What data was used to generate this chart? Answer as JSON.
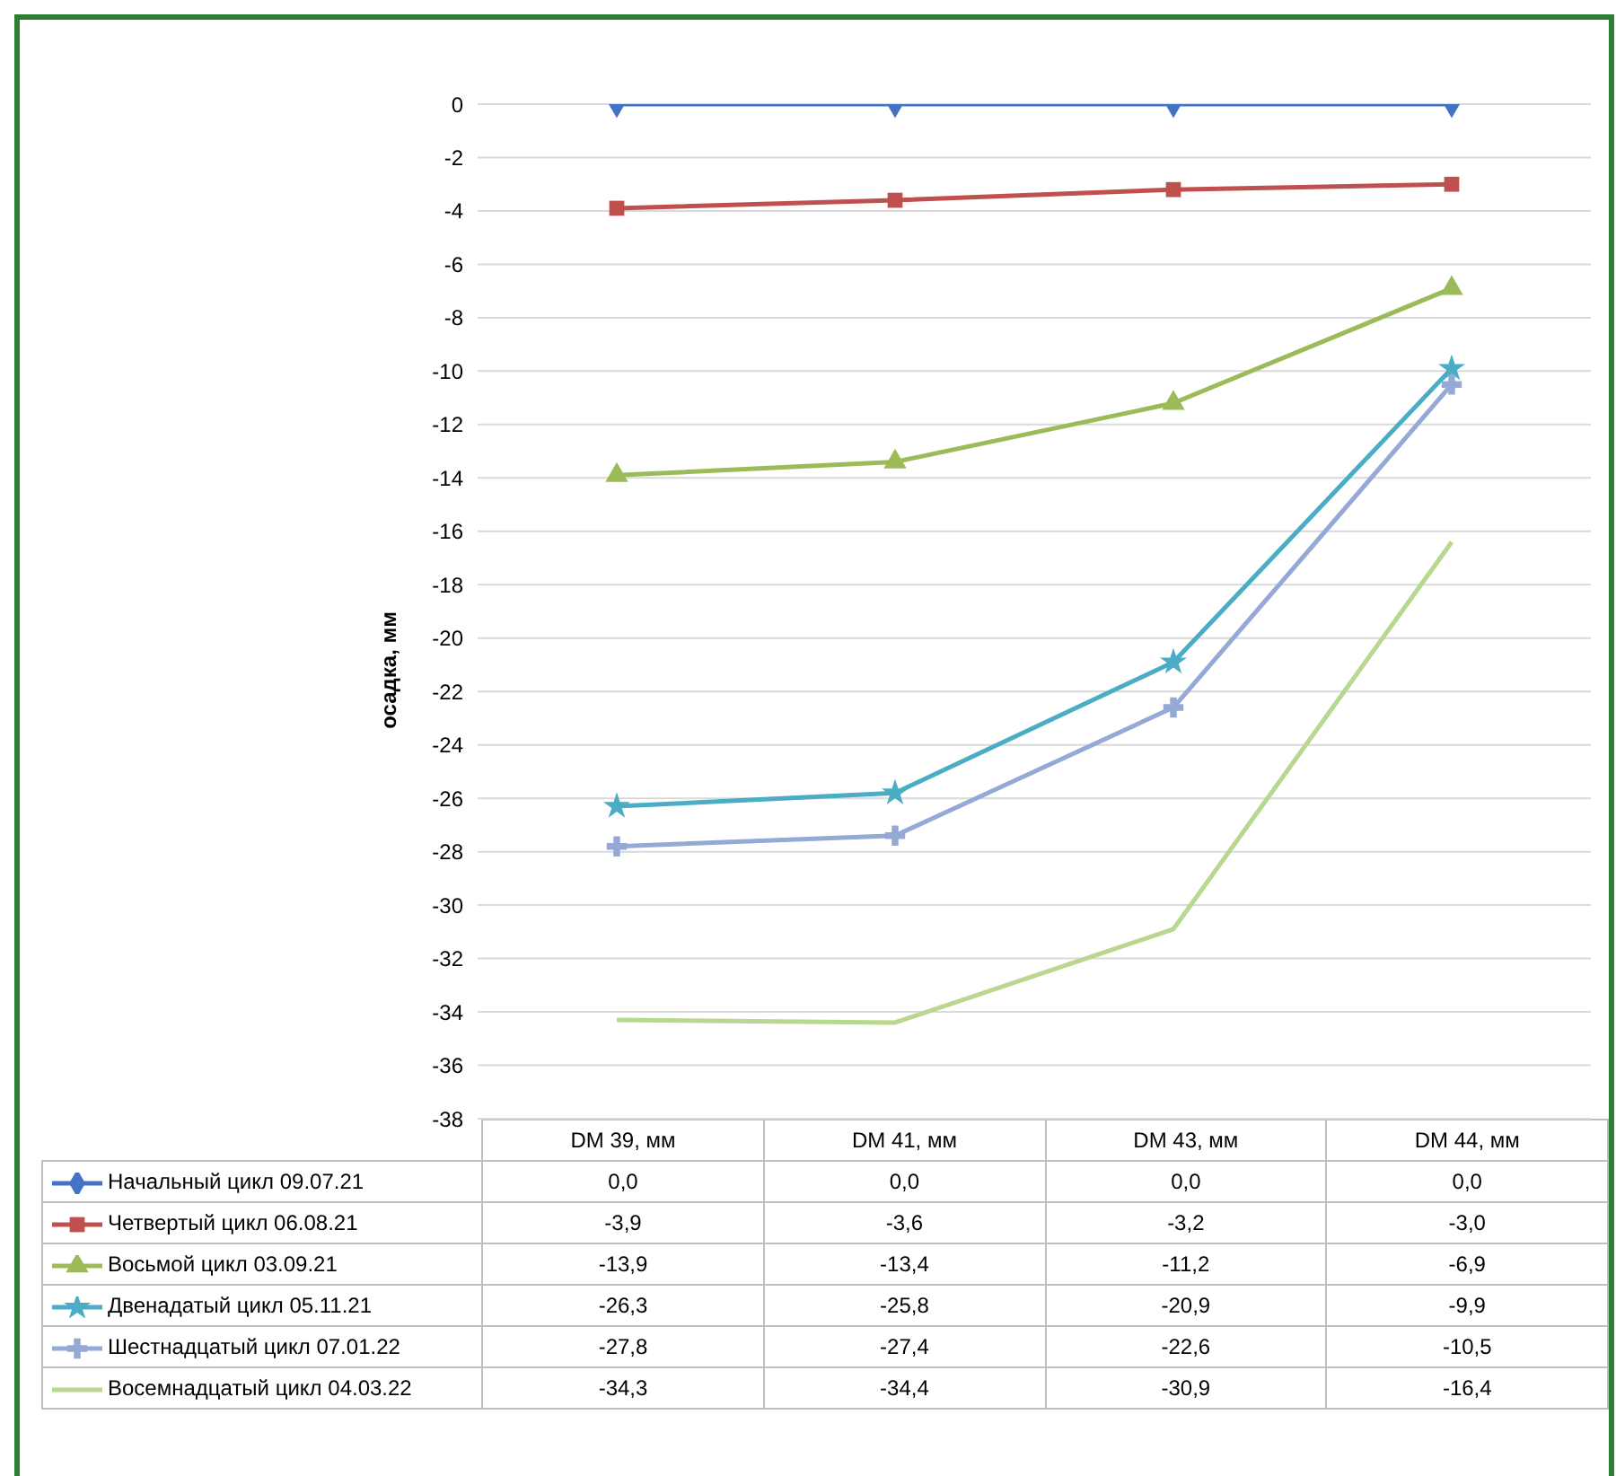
{
  "chart_data": {
    "type": "line",
    "ylabel": "осадка, мм",
    "categories": [
      "DM 39, мм",
      "DM 41, мм",
      "DM 43, мм",
      "DM 44, мм"
    ],
    "ylim": [
      -38,
      0
    ],
    "yticks": [
      0,
      -2,
      -4,
      -6,
      -8,
      -10,
      -12,
      -14,
      -16,
      -18,
      -20,
      -22,
      -24,
      -26,
      -28,
      -30,
      -32,
      -34,
      -36,
      -38
    ],
    "grid": "y",
    "legend": "bottom",
    "series": [
      {
        "name": "Начальный цикл 09.07.21",
        "color": "#4472c4",
        "marker": "diamond",
        "values": [
          0,
          0,
          0,
          0
        ],
        "value_labels": [
          "0,0",
          "0,0",
          "0,0",
          "0,0"
        ]
      },
      {
        "name": "Четвертый цикл 06.08.21",
        "color": "#c0504d",
        "marker": "square",
        "values": [
          -3.9,
          -3.6,
          -3.2,
          -3.0
        ],
        "value_labels": [
          "-3,9",
          "-3,6",
          "-3,2",
          "-3,0"
        ]
      },
      {
        "name": "Восьмой цикл 03.09.21",
        "color": "#9bbb59",
        "marker": "triangle",
        "values": [
          -13.9,
          -13.4,
          -11.2,
          -6.9
        ],
        "value_labels": [
          "-13,9",
          "-13,4",
          "-11,2",
          "-6,9"
        ]
      },
      {
        "name": "Двенадатый цикл 05.11.21",
        "color": "#4bacc6",
        "marker": "star",
        "values": [
          -26.3,
          -25.8,
          -20.9,
          -9.9
        ],
        "value_labels": [
          "-26,3",
          "-25,8",
          "-20,9",
          "-9,9"
        ]
      },
      {
        "name": "Шестнадцатый цикл 07.01.22",
        "color": "#95a9d6",
        "marker": "cross",
        "values": [
          -27.8,
          -27.4,
          -22.6,
          -10.5
        ],
        "value_labels": [
          "-27,8",
          "-27,4",
          "-22,6",
          "-10,5"
        ]
      },
      {
        "name": "Восемнадцатый цикл 04.03.22",
        "color": "#b8d78f",
        "marker": "none",
        "values": [
          -34.3,
          -34.4,
          -30.9,
          -16.4
        ],
        "value_labels": [
          "-34,3",
          "-34,4",
          "-30,9",
          "-16,4"
        ]
      }
    ]
  }
}
